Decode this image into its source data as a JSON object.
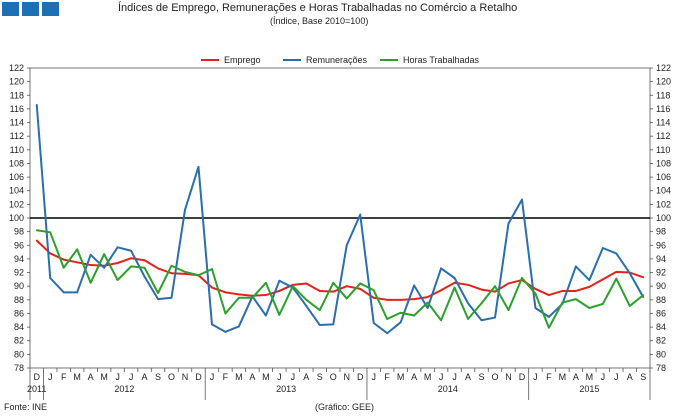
{
  "header": {
    "title": "Índices de Emprego, Remunerações e Horas Trabalhadas no Comércio a Retalho",
    "subtitle": "(Índice, Base 2010=100)"
  },
  "footer": {
    "source": "Fonte: INE",
    "chart_credit": "(Gráfico: GEE)"
  },
  "colors": {
    "emprego": "#e2231a",
    "remuneracoes": "#2a6ead",
    "horas": "#2ca02c",
    "logo": "#1f6fb4",
    "reference_line": "#000000"
  },
  "chart_data": {
    "type": "line",
    "title": "Índices de Emprego, Remunerações e Horas Trabalhadas no Comércio a Retalho",
    "subtitle": "(Índice, Base 2010=100)",
    "xlabel": "",
    "ylabel": "",
    "ylim": [
      78,
      122
    ],
    "y_ticks": [
      78,
      80,
      82,
      84,
      86,
      88,
      90,
      92,
      94,
      96,
      98,
      100,
      102,
      104,
      106,
      108,
      110,
      112,
      114,
      116,
      118,
      120,
      122
    ],
    "grid": false,
    "legend_position": "top-center",
    "reference_line": 100,
    "categories": [
      "D",
      "J",
      "F",
      "M",
      "A",
      "M",
      "J",
      "J",
      "A",
      "S",
      "O",
      "N",
      "D",
      "J",
      "F",
      "M",
      "A",
      "M",
      "J",
      "J",
      "A",
      "S",
      "O",
      "N",
      "D",
      "J",
      "F",
      "M",
      "A",
      "M",
      "J",
      "J",
      "A",
      "S",
      "O",
      "N",
      "D",
      "J",
      "F",
      "M",
      "A",
      "M",
      "J",
      "J",
      "A",
      "S"
    ],
    "year_groups": [
      {
        "label": "2011",
        "start": 0,
        "end": 0
      },
      {
        "label": "2012",
        "start": 1,
        "end": 12
      },
      {
        "label": "2013",
        "start": 13,
        "end": 24
      },
      {
        "label": "2014",
        "start": 25,
        "end": 36
      },
      {
        "label": "2015",
        "start": 37,
        "end": 45
      }
    ],
    "series": [
      {
        "name": "Emprego",
        "color": "#e2231a",
        "values": [
          96.7,
          94.8,
          93.9,
          93.5,
          93.1,
          93.0,
          93.4,
          94.1,
          93.8,
          92.6,
          91.9,
          91.8,
          91.6,
          89.8,
          89.1,
          88.8,
          88.6,
          88.7,
          89.3,
          90.2,
          90.4,
          89.3,
          89.2,
          90.0,
          89.6,
          88.3,
          88.0,
          88.0,
          88.1,
          88.4,
          89.4,
          90.5,
          90.2,
          89.5,
          89.2,
          90.4,
          90.9,
          89.6,
          88.7,
          89.3,
          89.3,
          89.9,
          91.0,
          92.1,
          92.0,
          91.3
        ]
      },
      {
        "name": "Remunerações",
        "color": "#2a6ead",
        "values": [
          116.6,
          91.2,
          89.1,
          89.1,
          94.6,
          92.7,
          95.7,
          95.2,
          91.4,
          88.1,
          88.3,
          101.2,
          107.5,
          84.4,
          83.3,
          84.1,
          88.5,
          85.7,
          90.8,
          89.8,
          87.1,
          84.3,
          84.4,
          96.0,
          100.5,
          84.6,
          83.1,
          84.7,
          90.1,
          86.8,
          92.6,
          91.2,
          87.5,
          85.0,
          85.4,
          99.2,
          102.7,
          86.8,
          85.5,
          87.4,
          92.9,
          90.9,
          95.6,
          94.8,
          91.9,
          88.4
        ]
      },
      {
        "name": "Horas Trabalhadas",
        "color": "#2ca02c",
        "values": [
          98.2,
          97.9,
          92.7,
          95.4,
          90.5,
          94.7,
          90.9,
          92.9,
          92.7,
          89.0,
          93.0,
          92.1,
          91.6,
          92.5,
          86.0,
          88.3,
          88.3,
          90.5,
          85.8,
          90.0,
          88.0,
          86.5,
          90.5,
          88.2,
          90.4,
          89.4,
          85.2,
          86.1,
          85.7,
          87.6,
          85.0,
          89.8,
          85.2,
          87.5,
          90.0,
          86.5,
          91.2,
          88.9,
          83.9,
          87.6,
          88.1,
          86.8,
          87.4,
          91.1,
          87.1,
          88.7
        ]
      }
    ]
  }
}
